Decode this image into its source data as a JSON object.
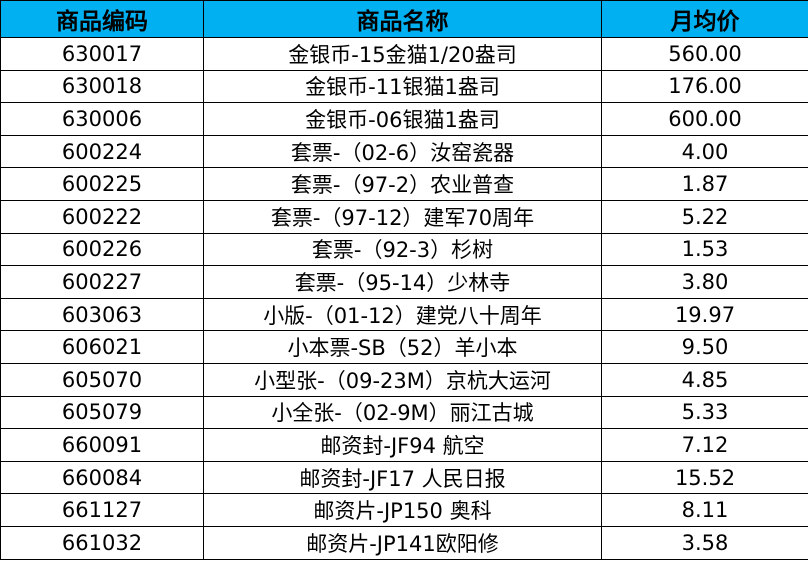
{
  "table": {
    "header_color": "#00b0f0",
    "columns": [
      "商品编码",
      "商品名称",
      "月均价"
    ],
    "rows": [
      {
        "code": "630017",
        "name": "金银币-15金猫1/20盎司",
        "price": "560.00"
      },
      {
        "code": "630018",
        "name": "金银币-11银猫1盎司",
        "price": "176.00"
      },
      {
        "code": "630006",
        "name": "金银币-06银猫1盎司",
        "price": "600.00"
      },
      {
        "code": "600224",
        "name": "套票-（02-6）汝窑瓷器",
        "price": "4.00"
      },
      {
        "code": "600225",
        "name": "套票-（97-2）农业普查",
        "price": "1.87"
      },
      {
        "code": "600222",
        "name": "套票-（97-12）建军70周年",
        "price": "5.22"
      },
      {
        "code": "600226",
        "name": "套票-（92-3）杉树",
        "price": "1.53"
      },
      {
        "code": "600227",
        "name": "套票-（95-14）少林寺",
        "price": "3.80"
      },
      {
        "code": "603063",
        "name": "小版-（01-12）建党八十周年",
        "price": "19.97"
      },
      {
        "code": "606021",
        "name": "小本票-SB（52）羊小本",
        "price": "9.50"
      },
      {
        "code": "605070",
        "name": "小型张-（09-23M）京杭大运河",
        "price": "4.85"
      },
      {
        "code": "605079",
        "name": "小全张-（02-9M）丽江古城",
        "price": "5.33"
      },
      {
        "code": "660091",
        "name": "邮资封-JF94 航空",
        "price": "7.12"
      },
      {
        "code": "660084",
        "name": "邮资封-JF17 人民日报",
        "price": "15.52"
      },
      {
        "code": "661127",
        "name": "邮资片-JP150 奥科",
        "price": "8.11"
      },
      {
        "code": "661032",
        "name": "邮资片-JP141欧阳修",
        "price": "3.58"
      }
    ]
  }
}
